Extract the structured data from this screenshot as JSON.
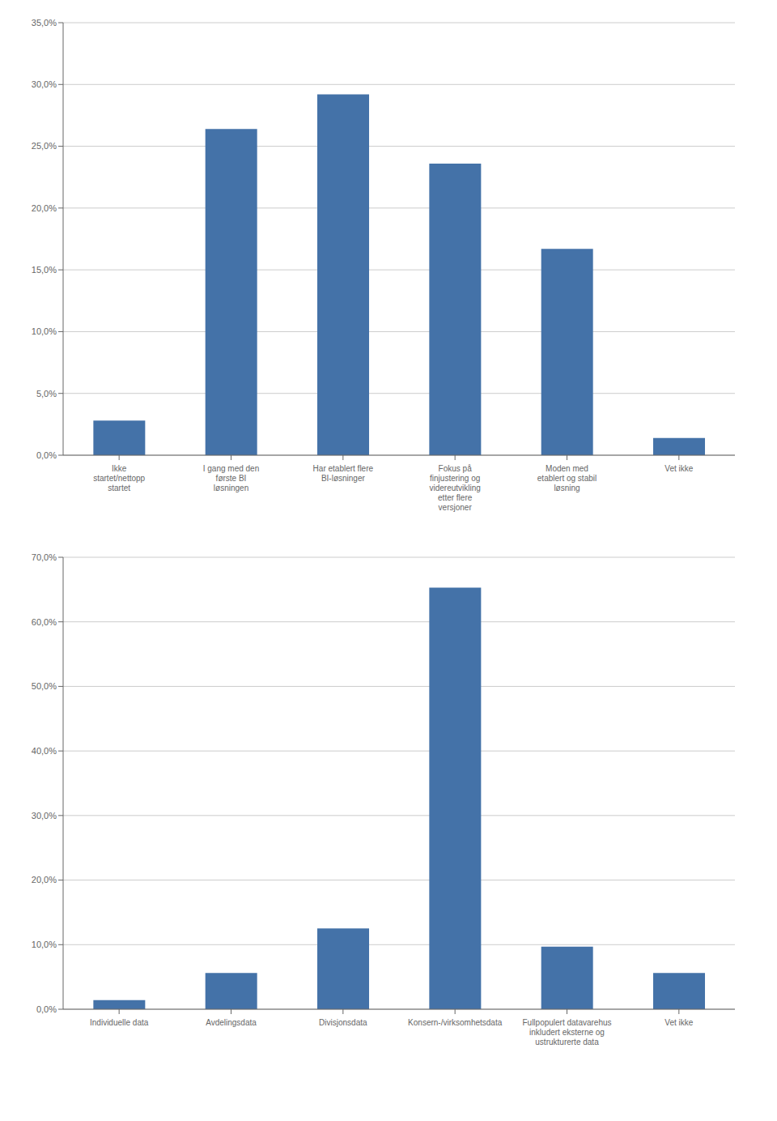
{
  "chart_data": [
    {
      "type": "bar",
      "categories": [
        "Ikke\nstartet/nettopp\nstartet",
        "I gang med den\nførste BI\nløsningen",
        "Har etablert flere\nBI-løsninger",
        "Fokus på\nfinjustering og\nvidereutvikling\netter flere\nversjoner",
        "Moden med\netablert og stabil\nløsning",
        "Vet ikke"
      ],
      "values": [
        2.8,
        26.4,
        29.2,
        23.6,
        16.7,
        1.4
      ],
      "color": "#4472a8",
      "ylim": [
        0,
        35
      ],
      "yticks": [
        {
          "value": 0,
          "label": "0,0%"
        },
        {
          "value": 5,
          "label": "5,0%"
        },
        {
          "value": 10,
          "label": "10,0%"
        },
        {
          "value": 15,
          "label": "15,0%"
        },
        {
          "value": 20,
          "label": "20,0%"
        },
        {
          "value": 25,
          "label": "25,0%"
        },
        {
          "value": 30,
          "label": "30,0%"
        },
        {
          "value": 35,
          "label": "35,0%"
        }
      ],
      "grid": true
    },
    {
      "type": "bar",
      "categories": [
        "Individuelle data",
        "Avdelingsdata",
        "Divisjonsdata",
        "Konsern-/virksomhetsdata",
        "Fullpopulert datavarehus\ninkludert eksterne og\nustrukturerte data",
        "Vet ikke"
      ],
      "values": [
        1.4,
        5.6,
        12.5,
        65.3,
        9.7,
        5.6
      ],
      "color": "#4472a8",
      "ylim": [
        0,
        70
      ],
      "yticks": [
        {
          "value": 0,
          "label": "0,0%"
        },
        {
          "value": 10,
          "label": "10,0%"
        },
        {
          "value": 20,
          "label": "20,0%"
        },
        {
          "value": 30,
          "label": "30,0%"
        },
        {
          "value": 40,
          "label": "40,0%"
        },
        {
          "value": 50,
          "label": "50,0%"
        },
        {
          "value": 60,
          "label": "60,0%"
        },
        {
          "value": 70,
          "label": "70,0%"
        }
      ],
      "grid": true
    }
  ]
}
